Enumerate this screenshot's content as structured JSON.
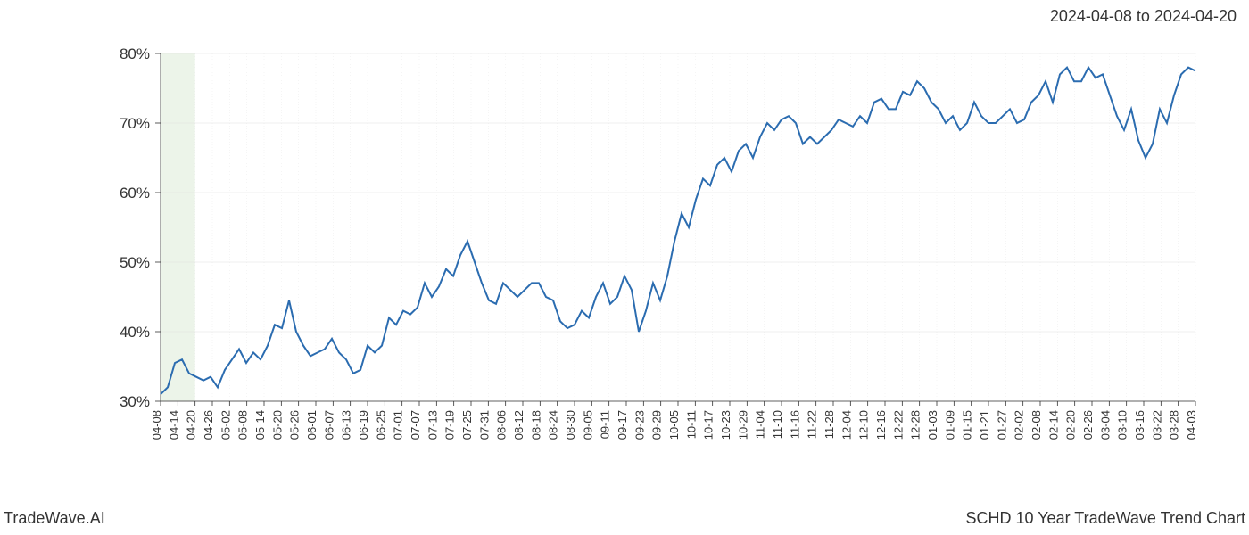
{
  "header": {
    "date_range": "2024-04-08 to 2024-04-20"
  },
  "footer": {
    "brand": "TradeWave.AI",
    "title": "SCHD 10 Year TradeWave Trend Chart"
  },
  "chart": {
    "type": "line",
    "background_color": "#ffffff",
    "grid_color": "#e0e0e0",
    "grid_color_minor": "#ebebeb",
    "axis_color": "#333333",
    "line_color": "#2b6cb0",
    "line_width": 2,
    "highlight_band": {
      "start_index": 0,
      "end_index": 2,
      "fill": "#d9e9d3"
    },
    "y_axis": {
      "min": 30,
      "max": 80,
      "ticks": [
        30,
        40,
        50,
        60,
        70,
        80
      ],
      "tick_labels": [
        "30%",
        "40%",
        "50%",
        "60%",
        "70%",
        "80%"
      ],
      "label_fontsize": 17
    },
    "x_axis": {
      "labels": [
        "04-08",
        "04-14",
        "04-20",
        "04-26",
        "05-02",
        "05-08",
        "05-14",
        "05-20",
        "05-26",
        "06-01",
        "06-07",
        "06-13",
        "06-19",
        "06-25",
        "07-01",
        "07-07",
        "07-13",
        "07-19",
        "07-25",
        "07-31",
        "08-06",
        "08-12",
        "08-18",
        "08-24",
        "08-30",
        "09-05",
        "09-11",
        "09-17",
        "09-23",
        "09-29",
        "10-05",
        "10-11",
        "10-17",
        "10-23",
        "10-29",
        "11-04",
        "11-10",
        "11-16",
        "11-22",
        "11-28",
        "12-04",
        "12-10",
        "12-16",
        "12-22",
        "12-28",
        "01-03",
        "01-09",
        "01-15",
        "01-21",
        "01-27",
        "02-02",
        "02-08",
        "02-14",
        "02-20",
        "02-26",
        "03-04",
        "03-10",
        "03-16",
        "03-22",
        "03-28",
        "04-03"
      ],
      "label_fontsize": 13,
      "label_rotation": 90
    },
    "series": {
      "values": [
        31,
        32,
        35.5,
        36,
        34,
        33.5,
        33,
        33.5,
        32,
        34.5,
        36,
        37.5,
        35.5,
        37,
        36,
        38,
        41,
        40.5,
        44.5,
        40,
        38,
        36.5,
        37,
        37.5,
        39,
        37,
        36,
        34,
        34.5,
        38,
        37,
        38,
        42,
        41,
        43,
        42.5,
        43.5,
        47,
        45,
        46.5,
        49,
        48,
        51,
        53,
        50,
        47,
        44.5,
        44,
        47,
        46,
        45,
        46,
        47,
        47,
        45,
        44.5,
        41.5,
        40.5,
        41,
        43,
        42,
        45,
        47,
        44,
        45,
        48,
        46,
        40,
        43,
        47,
        44.5,
        48,
        53,
        57,
        55,
        59,
        62,
        61,
        64,
        65,
        63,
        66,
        67,
        65,
        68,
        70,
        69,
        70.5,
        71,
        70,
        67,
        68,
        67,
        68,
        69,
        70.5,
        70,
        69.5,
        71,
        70,
        73,
        73.5,
        72,
        72,
        74.5,
        74,
        76,
        75,
        73,
        72,
        70,
        71,
        69,
        70,
        73,
        71,
        70,
        70,
        71,
        72,
        70,
        70.5,
        73,
        74,
        76,
        73,
        77,
        78,
        76,
        76,
        78,
        76.5,
        77,
        74,
        71,
        69,
        72,
        67.5,
        65,
        67,
        72,
        70,
        74,
        77,
        78,
        77.5
      ]
    }
  }
}
